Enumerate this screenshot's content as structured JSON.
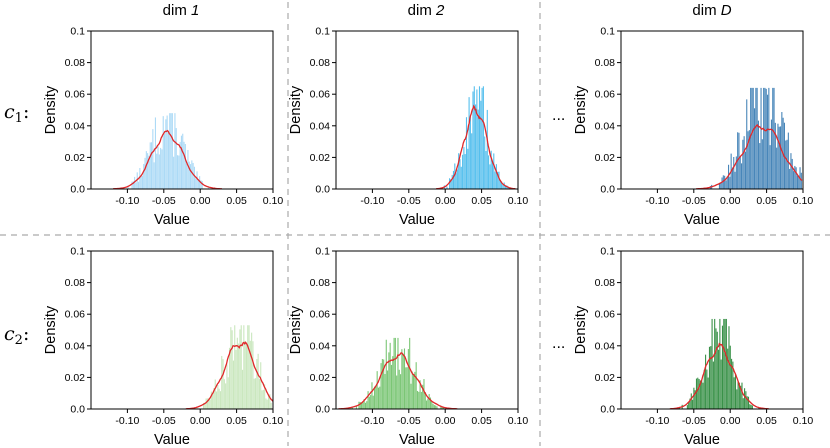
{
  "figure": {
    "column_titles": [
      {
        "prefix": "dim ",
        "italic": "1"
      },
      {
        "prefix": "dim ",
        "italic": "2"
      },
      {
        "prefix": "dim ",
        "italic": "D"
      }
    ],
    "row_labels": [
      {
        "main": "c",
        "sub": "1",
        "suffix": ":"
      },
      {
        "main": "c",
        "sub": "2",
        "suffix": ":"
      }
    ],
    "ellipsis": "..."
  },
  "chart_data": [
    {
      "type": "histogram+kde",
      "row": 1,
      "column": "dim 1",
      "xlabel": "Value",
      "ylabel": "Density",
      "xlim": [
        -0.15,
        0.1
      ],
      "ylim": [
        0,
        0.1
      ],
      "xticks": [
        "-0.10",
        "-0.05",
        "0.00",
        "0.05",
        "0.10"
      ],
      "yticks": [
        "0.0",
        "0.02",
        "0.04",
        "0.06",
        "0.08",
        "0.1"
      ],
      "color": "#a8d8f5",
      "kde_color": "#e0282a",
      "mean": -0.045,
      "std": 0.022,
      "peak_density": 0.035,
      "hist_max": 0.048,
      "bins": 80
    },
    {
      "type": "histogram+kde",
      "row": 1,
      "column": "dim 2",
      "xlabel": "Value",
      "ylabel": "Density",
      "xlim": [
        -0.15,
        0.1
      ],
      "ylim": [
        0,
        0.1
      ],
      "xticks": [
        "-0.10",
        "-0.05",
        "0.00",
        "0.05",
        "0.10"
      ],
      "yticks": [
        "0.0",
        "0.02",
        "0.04",
        "0.06",
        "0.08",
        "0.1"
      ],
      "color": "#4cbcec",
      "kde_color": "#e0282a",
      "mean": 0.042,
      "std": 0.016,
      "peak_density": 0.05,
      "hist_max": 0.065,
      "bins": 60
    },
    {
      "type": "histogram+kde",
      "row": 1,
      "column": "dim D",
      "xlabel": "Value",
      "ylabel": "Density",
      "xlim": [
        -0.15,
        0.1
      ],
      "ylim": [
        0,
        0.1
      ],
      "xticks": [
        "-0.10",
        "-0.05",
        "0.00",
        "0.05",
        "0.10"
      ],
      "yticks": [
        "0.0",
        "0.02",
        "0.04",
        "0.06",
        "0.08",
        "0.1"
      ],
      "color": "#3e7fb5",
      "kde_color": "#e0282a",
      "mean": 0.045,
      "std": 0.027,
      "peak_density": 0.04,
      "hist_max": 0.064,
      "bins": 70
    },
    {
      "type": "histogram+kde",
      "row": 2,
      "column": "dim 1",
      "xlabel": "Value",
      "ylabel": "Density",
      "xlim": [
        -0.15,
        0.1
      ],
      "ylim": [
        0,
        0.1
      ],
      "xticks": [
        "-0.10",
        "-0.05",
        "0.00",
        "0.05",
        "0.10"
      ],
      "yticks": [
        "0.0",
        "0.02",
        "0.04",
        "0.06",
        "0.08",
        "0.1"
      ],
      "color": "#c7e6bb",
      "kde_color": "#e0282a",
      "mean": 0.055,
      "std": 0.022,
      "peak_density": 0.042,
      "hist_max": 0.053,
      "bins": 60
    },
    {
      "type": "histogram+kde",
      "row": 2,
      "column": "dim 2",
      "xlabel": "Value",
      "ylabel": "Density",
      "xlim": [
        -0.15,
        0.1
      ],
      "ylim": [
        0,
        0.1
      ],
      "xticks": [
        "-0.10",
        "-0.05",
        "0.00",
        "0.05",
        "0.10"
      ],
      "yticks": [
        "0.0",
        "0.02",
        "0.04",
        "0.06",
        "0.08",
        "0.1"
      ],
      "color": "#74c36e",
      "kde_color": "#e0282a",
      "mean": -0.065,
      "std": 0.024,
      "peak_density": 0.034,
      "hist_max": 0.045,
      "bins": 80
    },
    {
      "type": "histogram+kde",
      "row": 2,
      "column": "dim D",
      "xlabel": "Value",
      "ylabel": "Density",
      "xlim": [
        -0.15,
        0.1
      ],
      "ylim": [
        0,
        0.1
      ],
      "xticks": [
        "-0.10",
        "-0.05",
        "0.00",
        "0.05",
        "0.10"
      ],
      "yticks": [
        "0.0",
        "0.02",
        "0.04",
        "0.06",
        "0.08",
        "0.1"
      ],
      "color": "#2e8b3e",
      "kde_color": "#e0282a",
      "mean": -0.015,
      "std": 0.02,
      "peak_density": 0.039,
      "hist_max": 0.057,
      "bins": 75
    }
  ]
}
